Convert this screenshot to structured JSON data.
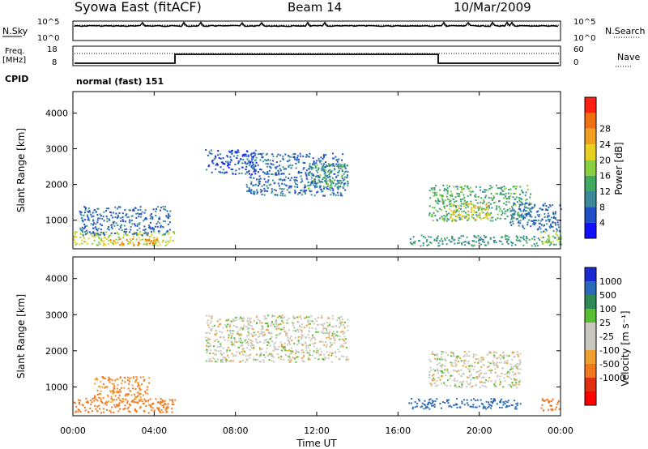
{
  "header": {
    "station": "Syowa East (fitACF)",
    "beam": "Beam 14",
    "date": "10/Mar/2009"
  },
  "noise_panel": {
    "left_label": "N.Sky",
    "right_label": "N.Search",
    "left_ticks": [
      "10^5",
      "10^0"
    ],
    "right_ticks": [
      "10^5",
      "10^0"
    ]
  },
  "freq_panel": {
    "left_label_line1": "Freq.",
    "left_label_line2": "[MHz]",
    "right_label": "Nave",
    "left_ticks": [
      "18",
      "8"
    ],
    "right_ticks": [
      "60",
      "0"
    ]
  },
  "cpid": {
    "label": "CPID",
    "value": "normal (fast) 151"
  },
  "x_axis": {
    "label": "Time UT",
    "ticks": [
      "00:00",
      "04:00",
      "08:00",
      "12:00",
      "16:00",
      "20:00",
      "00:00"
    ]
  },
  "colors": {
    "power_scale": [
      "#1010ff",
      "#2050c8",
      "#3a8a9a",
      "#3faa60",
      "#8ad040",
      "#e8d020",
      "#f0a020",
      "#f07010",
      "#ff2010"
    ],
    "velocity_scale": [
      "#1a2ad0",
      "#2a6ab8",
      "#2e8a55",
      "#58c030",
      "#c8c8c0",
      "#c8c8c0",
      "#f0a030",
      "#f07820",
      "#e03010",
      "#ff0000"
    ]
  },
  "chart_data": [
    {
      "type": "heatmap",
      "title": "",
      "ylabel": "Slant Range [km]",
      "y_ticks": [
        "1000",
        "2000",
        "3000",
        "4000"
      ],
      "ylim": [
        200,
        4600
      ],
      "xlim_hours": [
        0,
        24
      ],
      "colorbar_label": "Power [dB]",
      "colorbar_ticks": [
        "4",
        "8",
        "12",
        "16",
        "20",
        "24",
        "28"
      ],
      "regions": [
        {
          "t0": 0.0,
          "t1": 5.0,
          "r0": 300,
          "r1": 700,
          "level": 20
        },
        {
          "t0": 1.8,
          "t1": 4.2,
          "r0": 320,
          "r1": 500,
          "level": 28
        },
        {
          "t0": 0.3,
          "t1": 4.8,
          "r0": 600,
          "r1": 1400,
          "level": 8
        },
        {
          "t0": 6.5,
          "t1": 9.0,
          "r0": 2300,
          "r1": 3000,
          "level": 6
        },
        {
          "t0": 8.5,
          "t1": 13.5,
          "r0": 1700,
          "r1": 2900,
          "level": 8
        },
        {
          "t0": 11.5,
          "t1": 13.5,
          "r0": 1900,
          "r1": 2600,
          "level": 14
        },
        {
          "t0": 16.5,
          "t1": 24.0,
          "r0": 300,
          "r1": 600,
          "level": 12
        },
        {
          "t0": 17.5,
          "t1": 22.5,
          "r0": 1000,
          "r1": 2000,
          "level": 14
        },
        {
          "t0": 18.5,
          "t1": 20.5,
          "r0": 1000,
          "r1": 1500,
          "level": 22
        },
        {
          "t0": 21.5,
          "t1": 24.0,
          "r0": 700,
          "r1": 1500,
          "level": 8
        },
        {
          "t0": 23.0,
          "t1": 24.0,
          "r0": 350,
          "r1": 700,
          "level": 18
        }
      ]
    },
    {
      "type": "heatmap",
      "title": "",
      "ylabel": "Slant Range [km]",
      "y_ticks": [
        "1000",
        "2000",
        "3000",
        "4000"
      ],
      "ylim": [
        200,
        4600
      ],
      "xlim_hours": [
        0,
        24
      ],
      "colorbar_label": "Velocity [m s⁻¹]",
      "colorbar_ticks": [
        "1000",
        "500",
        "100",
        "25",
        "-25",
        "-100",
        "-500",
        "-1000"
      ],
      "regions": [
        {
          "t0": 0.0,
          "t1": 5.0,
          "r0": 300,
          "r1": 700,
          "level": -300
        },
        {
          "t0": 1.0,
          "t1": 3.8,
          "r0": 600,
          "r1": 1300,
          "level": -250
        },
        {
          "t0": 6.5,
          "t1": 13.5,
          "r0": 1700,
          "r1": 3000,
          "level": 0
        },
        {
          "t0": 16.5,
          "t1": 22.0,
          "r0": 400,
          "r1": 700,
          "level": 300
        },
        {
          "t0": 17.5,
          "t1": 22.0,
          "r0": 1000,
          "r1": 2000,
          "level": 0
        },
        {
          "t0": 23.0,
          "t1": 24.0,
          "r0": 350,
          "r1": 700,
          "level": -300
        }
      ]
    }
  ]
}
